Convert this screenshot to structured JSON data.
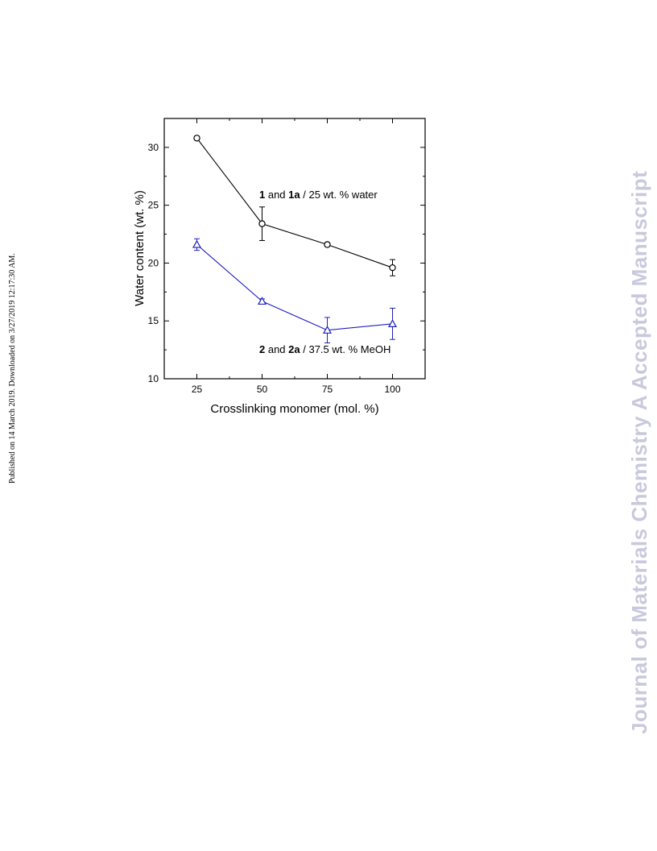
{
  "side_note": "Published on 14 March 2019. Downloaded on 3/27/2019 12:17:30 AM.",
  "watermark": "Journal of Materials Chemistry A Accepted Manuscript",
  "chart_data": {
    "type": "line",
    "xlabel": "Crosslinking monomer (mol. %)",
    "ylabel": "Water content (wt. %)",
    "xlim": [
      12.5,
      112.5
    ],
    "ylim": [
      10,
      32.5
    ],
    "xticks": [
      25,
      50,
      75,
      100
    ],
    "yticks": [
      10,
      15,
      20,
      25,
      30
    ],
    "grid": false,
    "series": [
      {
        "label_parts": [
          {
            "text": "1",
            "bold": true
          },
          {
            "text": " and ",
            "bold": false
          },
          {
            "text": "1a",
            "bold": true
          },
          {
            "text": " / 25 wt. % water",
            "bold": false
          }
        ],
        "marker": "circle",
        "color": "#000000",
        "x": [
          25,
          50,
          75,
          100
        ],
        "y": [
          30.8,
          23.4,
          21.6,
          19.6
        ],
        "err": [
          0.15,
          1.45,
          0.15,
          0.7
        ]
      },
      {
        "label_parts": [
          {
            "text": "2",
            "bold": true
          },
          {
            "text": " and ",
            "bold": false
          },
          {
            "text": "2a",
            "bold": true
          },
          {
            "text": " / 37.5 wt. % MeOH",
            "bold": false
          }
        ],
        "marker": "triangle",
        "color": "#1f1fbf",
        "x": [
          25,
          50,
          75,
          100
        ],
        "y": [
          21.6,
          16.7,
          14.2,
          14.75
        ],
        "err": [
          0.5,
          0.2,
          1.1,
          1.35
        ]
      }
    ]
  }
}
